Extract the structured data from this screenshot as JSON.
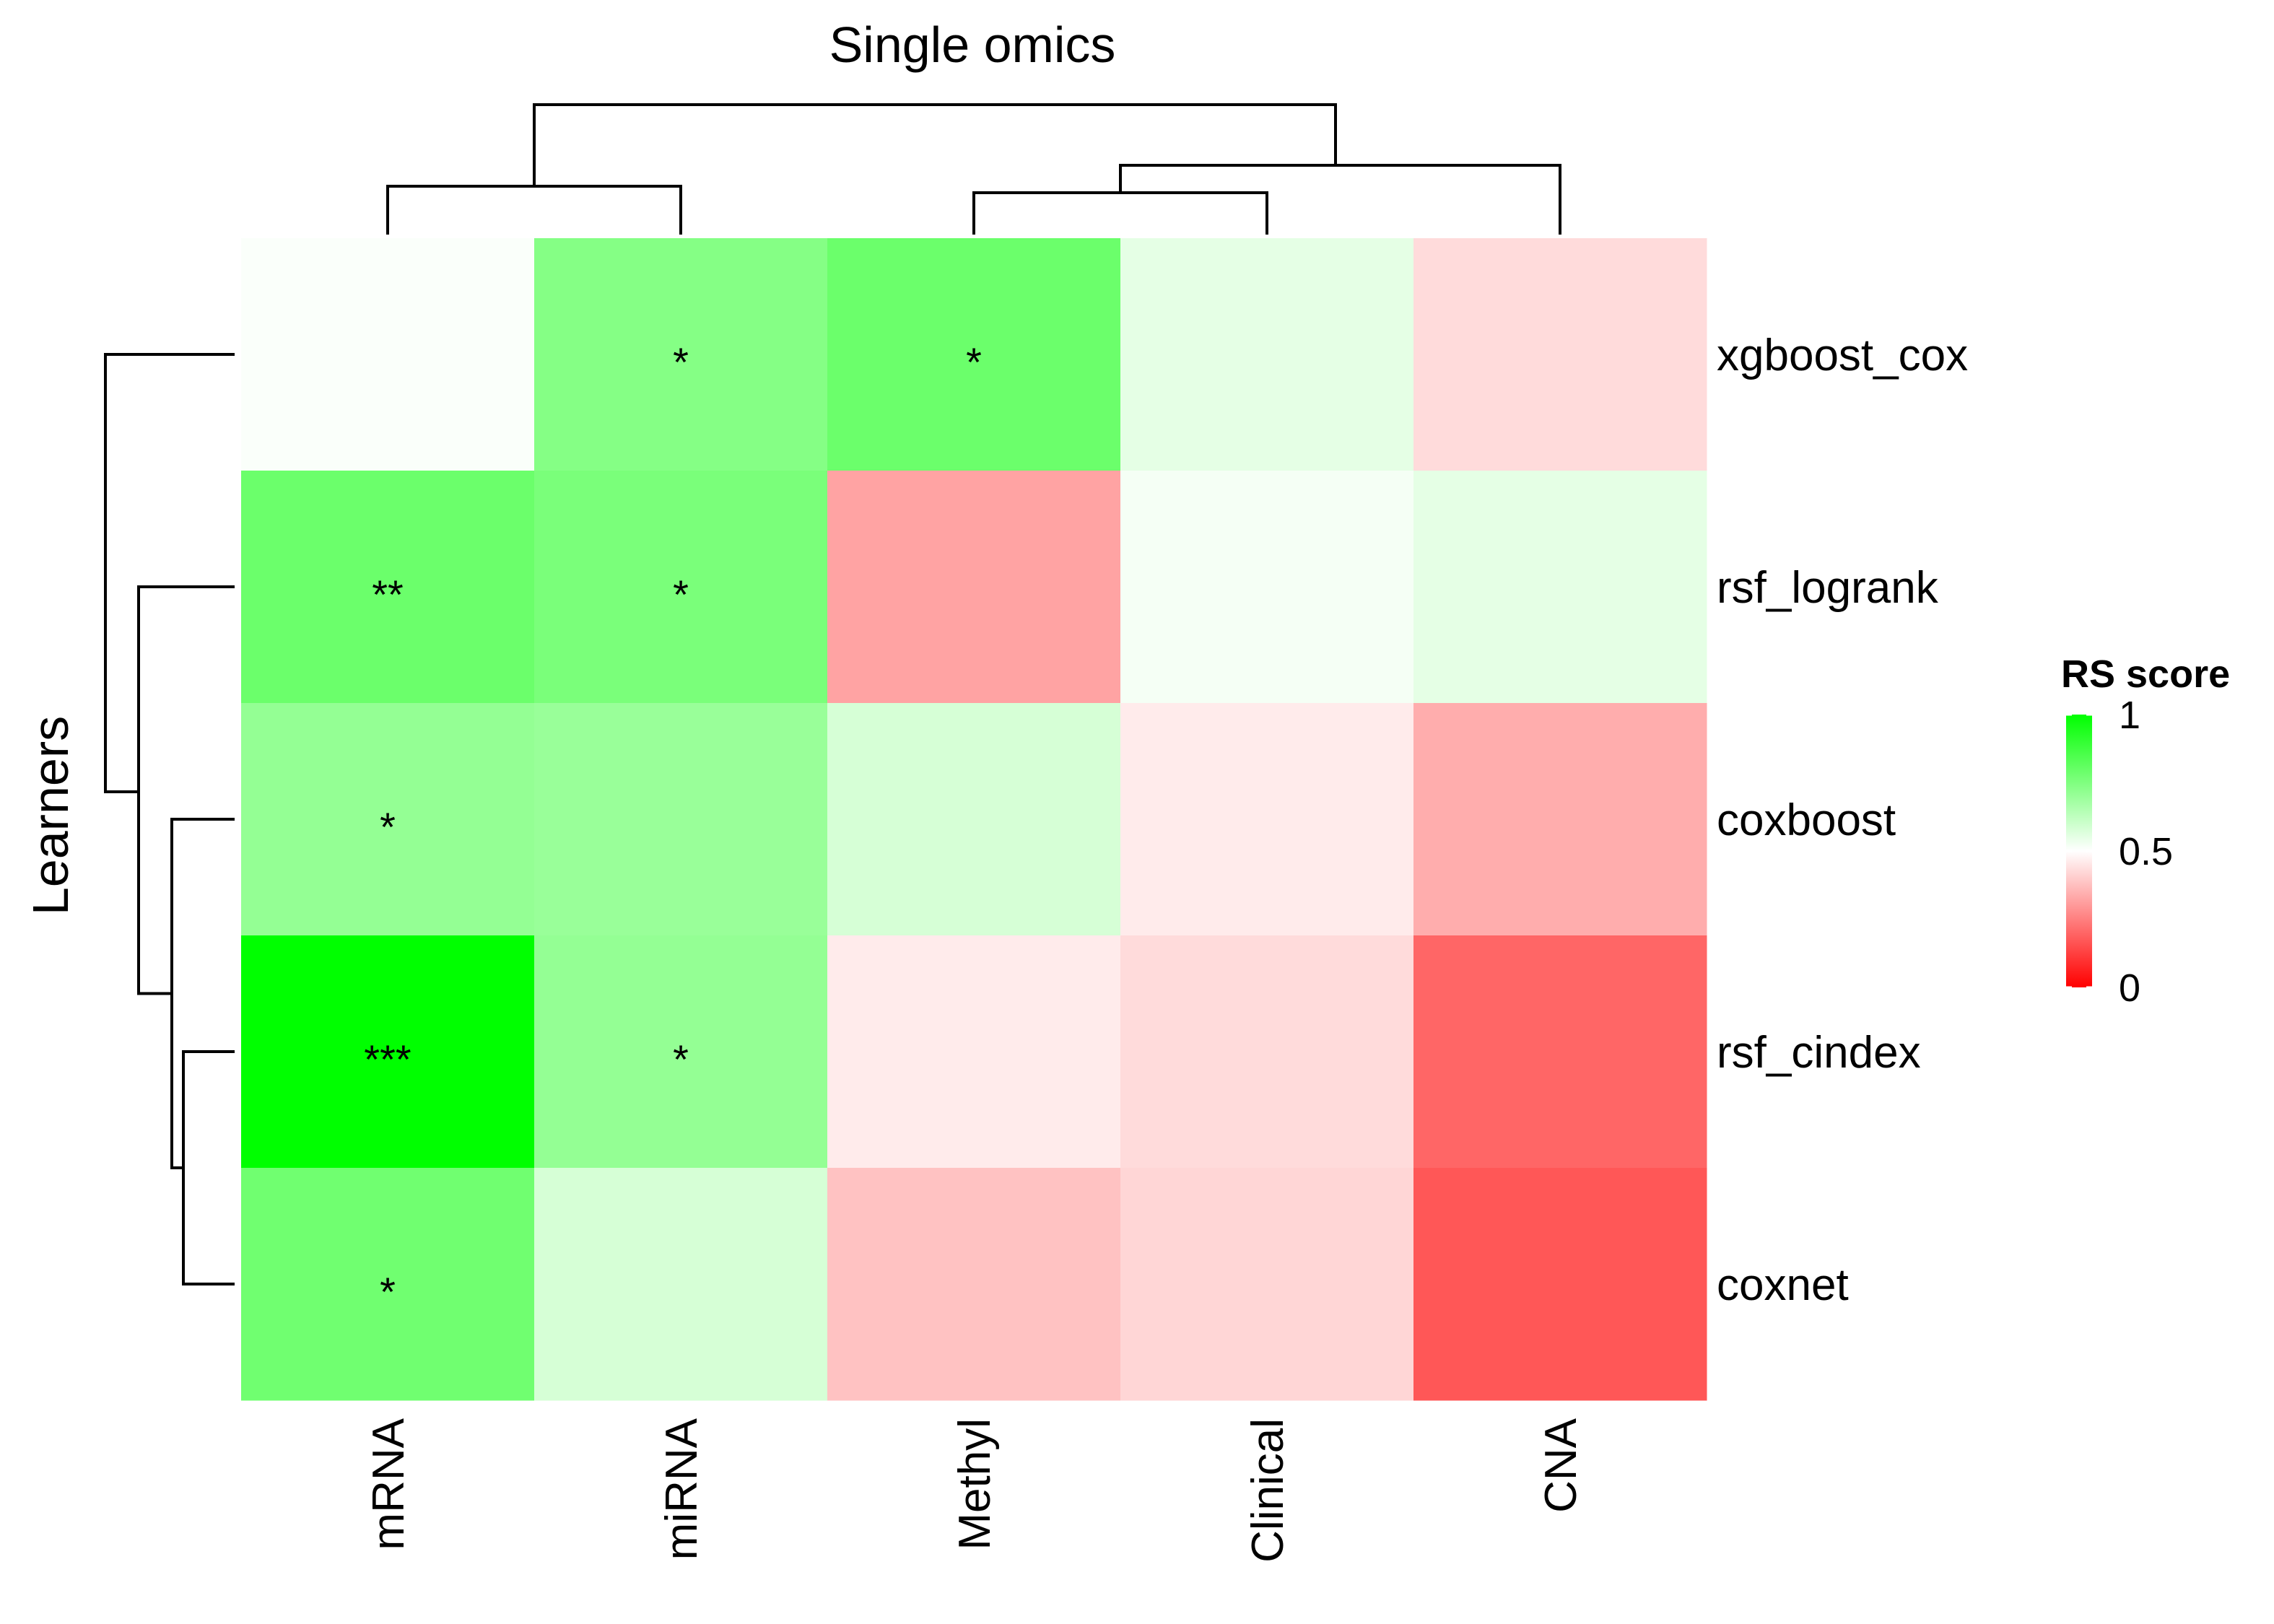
{
  "chart_data": {
    "type": "heatmap",
    "title": "Single omics",
    "ylabel": "Learners",
    "columns": [
      "mRNA",
      "miRNA",
      "Methyl",
      "Clinical",
      "CNA"
    ],
    "rows": [
      "xgboost_cox",
      "rsf_logrank",
      "coxboost",
      "rsf_cindex",
      "coxnet"
    ],
    "values": [
      [
        0.51,
        0.74,
        0.79,
        0.55,
        0.43
      ],
      [
        0.79,
        0.76,
        0.32,
        0.52,
        0.55
      ],
      [
        0.71,
        0.7,
        0.58,
        0.46,
        0.34
      ],
      [
        1.0,
        0.71,
        0.46,
        0.43,
        0.2
      ],
      [
        0.78,
        0.58,
        0.38,
        0.42,
        0.17
      ]
    ],
    "significance": [
      [
        "",
        "*",
        "*",
        "",
        ""
      ],
      [
        "**",
        "*",
        "",
        "",
        ""
      ],
      [
        "*",
        "",
        "",
        "",
        ""
      ],
      [
        "***",
        "*",
        "",
        "",
        ""
      ],
      [
        "*",
        "",
        "",
        "",
        ""
      ]
    ],
    "color_scale": {
      "low": "#ff0000",
      "mid": "#ffffff",
      "high": "#00ff00",
      "range": [
        0,
        1
      ],
      "midpoint": 0.5
    },
    "legend": {
      "title": "RS score",
      "ticks": [
        "0",
        "0.5",
        "1"
      ],
      "tick_values": [
        0,
        0.5,
        1
      ],
      "position": "right"
    },
    "column_dendrogram": "((mRNA, miRNA), ((Methyl, Clinical), CNA))",
    "row_dendrogram": "(xgboost_cox, (rsf_logrank, (coxboost, (rsf_cindex, coxnet))))"
  }
}
